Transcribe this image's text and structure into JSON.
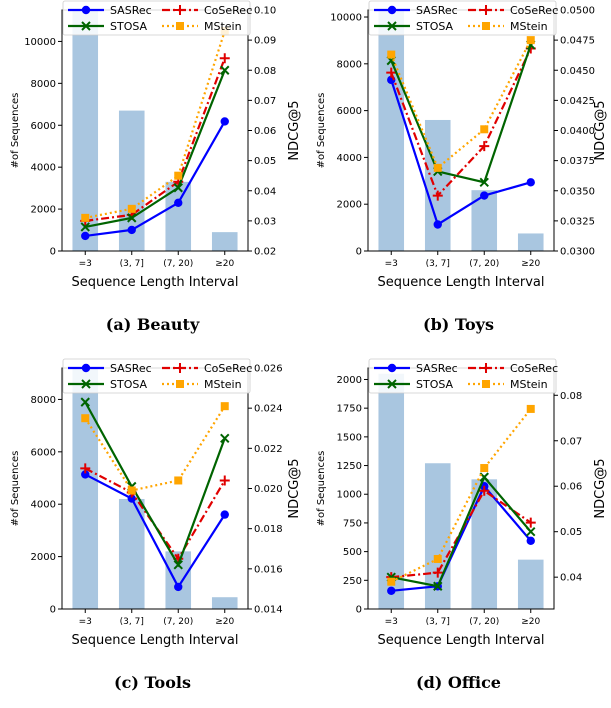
{
  "chart_data": [
    {
      "id": "beauty",
      "caption": "(a) Beauty",
      "type": "bar+line",
      "categories": [
        "=3",
        "(3, 7]",
        "(7, 20)",
        "≥20"
      ],
      "xlabel": "Sequence Length Interval",
      "ylabel_left": "#of Sequences",
      "ylabel_right": "NDCG@5",
      "ylim_left": [
        0,
        11500
      ],
      "yticks_left": [
        0,
        2000,
        4000,
        6000,
        8000,
        10000
      ],
      "ylim_right": [
        0.02,
        0.1
      ],
      "yticks_right": [
        "0.02",
        "0.03",
        "0.04",
        "0.05",
        "0.06",
        "0.07",
        "0.08",
        "0.09",
        "0.10"
      ],
      "bars": [
        11500,
        6700,
        3300,
        900
      ],
      "series": [
        {
          "name": "SASRec",
          "values": [
            0.025,
            0.027,
            0.036,
            0.063
          ]
        },
        {
          "name": "CoSeRec",
          "values": [
            0.03,
            0.032,
            0.043,
            0.084
          ]
        },
        {
          "name": "STOSA",
          "values": [
            0.028,
            0.031,
            0.041,
            0.08
          ]
        },
        {
          "name": "MStein",
          "values": [
            0.031,
            0.034,
            0.045,
            0.093
          ]
        }
      ]
    },
    {
      "id": "toys",
      "caption": "(b) Toys",
      "type": "bar+line",
      "categories": [
        "=3",
        "(3, 7]",
        "(7, 20)",
        "≥20"
      ],
      "xlabel": "Sequence Length Interval",
      "ylabel_left": "#of Sequences",
      "ylabel_right": "NDCG@5",
      "ylim_left": [
        0,
        10300
      ],
      "yticks_left": [
        0,
        2000,
        4000,
        6000,
        8000,
        10000
      ],
      "ylim_right": [
        0.03,
        0.05
      ],
      "yticks_right": [
        "0.0300",
        "0.0325",
        "0.0350",
        "0.0375",
        "0.0400",
        "0.0425",
        "0.0450",
        "0.0475",
        "0.0500"
      ],
      "bars": [
        10300,
        5600,
        2600,
        750
      ],
      "series": [
        {
          "name": "SASRec",
          "values": [
            0.0442,
            0.0322,
            0.0346,
            0.0357
          ]
        },
        {
          "name": "CoSeRec",
          "values": [
            0.0448,
            0.0346,
            0.0387,
            0.0468
          ]
        },
        {
          "name": "STOSA",
          "values": [
            0.0458,
            0.0366,
            0.0357,
            0.0471
          ]
        },
        {
          "name": "MStein",
          "values": [
            0.0463,
            0.0369,
            0.0401,
            0.0475
          ]
        }
      ]
    },
    {
      "id": "tools",
      "caption": "(c) Tools",
      "type": "bar+line",
      "categories": [
        "=3",
        "(3, 7]",
        "(7, 20)",
        "≥20"
      ],
      "xlabel": "Sequence Length Interval",
      "ylabel_left": "#of Sequences",
      "ylabel_right": "NDCG@5",
      "ylim_left": [
        0,
        9200
      ],
      "yticks_left": [
        0,
        2000,
        4000,
        6000,
        8000
      ],
      "ylim_right": [
        0.014,
        0.026
      ],
      "yticks_right": [
        "0.014",
        "0.016",
        "0.018",
        "0.020",
        "0.022",
        "0.024",
        "0.026"
      ],
      "bars": [
        9200,
        4200,
        2200,
        450
      ],
      "series": [
        {
          "name": "SASRec",
          "values": [
            0.0207,
            0.0195,
            0.0151,
            0.0187
          ]
        },
        {
          "name": "CoSeRec",
          "values": [
            0.021,
            0.0198,
            0.0165,
            0.0204
          ]
        },
        {
          "name": "STOSA",
          "values": [
            0.0243,
            0.0201,
            0.0162,
            0.0225
          ]
        },
        {
          "name": "MStein",
          "values": [
            0.0235,
            0.0199,
            0.0204,
            0.0241
          ]
        }
      ]
    },
    {
      "id": "office",
      "caption": "(d) Office",
      "type": "bar+line",
      "categories": [
        "=3",
        "(3, 7]",
        "(7, 20)",
        "≥20"
      ],
      "xlabel": "Sequence Length Interval",
      "ylabel_left": "#of Sequences",
      "ylabel_right": "NDCG@5",
      "ylim_left": [
        0,
        2100
      ],
      "yticks_left": [
        0,
        250,
        500,
        750,
        1000,
        1250,
        1500,
        1750,
        2000
      ],
      "ylim_right": [
        0.033,
        0.086
      ],
      "yticks_right": [
        "0.04",
        "0.05",
        "0.06",
        "0.07",
        "0.08"
      ],
      "bars": [
        2050,
        1270,
        1130,
        430
      ],
      "series": [
        {
          "name": "SASRec",
          "values": [
            0.037,
            0.038,
            0.06,
            0.048
          ]
        },
        {
          "name": "CoSeRec",
          "values": [
            0.04,
            0.041,
            0.059,
            0.052
          ]
        },
        {
          "name": "STOSA",
          "values": [
            0.04,
            0.038,
            0.062,
            0.05
          ]
        },
        {
          "name": "MStein",
          "values": [
            0.039,
            0.044,
            0.064,
            0.077
          ]
        }
      ]
    }
  ],
  "legend_styles": [
    {
      "name": "SASRec",
      "color": "#0000ff",
      "marker": "circle",
      "dash": ""
    },
    {
      "name": "CoSeRec",
      "color": "#e00000",
      "marker": "plus",
      "dash": "8,3,2,3"
    },
    {
      "name": "STOSA",
      "color": "#006400",
      "marker": "x",
      "dash": ""
    },
    {
      "name": "MStein",
      "color": "#ffa500",
      "marker": "square",
      "dash": "2,3"
    }
  ],
  "bar_color": "#a9c6e0"
}
